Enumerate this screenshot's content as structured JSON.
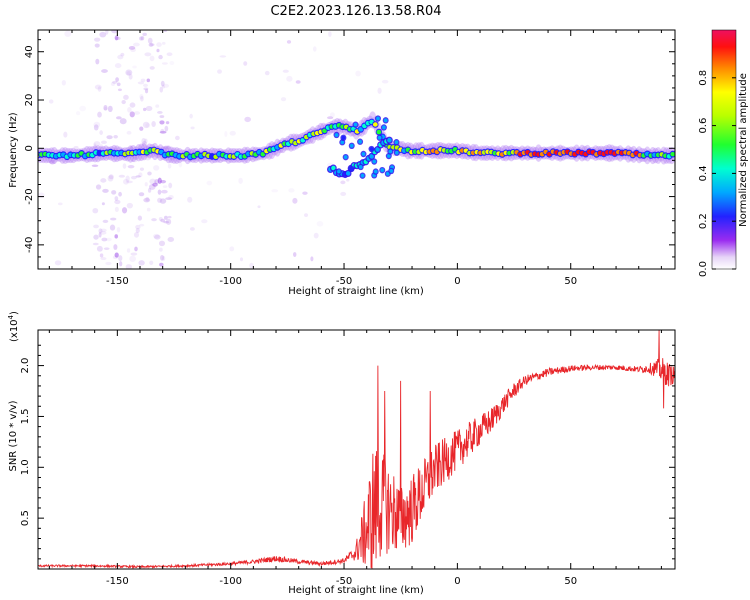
{
  "title": "C2E2.2023.126.13.58.R04",
  "colors": {
    "signal_line": "#e8262a",
    "axis": "#000000",
    "frame": "#000000"
  },
  "chart_data": [
    {
      "type": "heatmap",
      "name": "spectrogram",
      "xlabel": "Height of straight line (km)",
      "ylabel": "Frequency (Hz)",
      "xlim": [
        -185,
        96
      ],
      "ylim": [
        -50,
        49
      ],
      "xticks": [
        -150,
        -100,
        -50,
        0,
        50
      ],
      "yticks": [
        -40,
        -20,
        0,
        20,
        40
      ],
      "ridge": {
        "x": [
          -185,
          -170,
          -155,
          -145,
          -135,
          -125,
          -110,
          -95,
          -85,
          -80,
          -75,
          -70,
          -65,
          -60,
          -57,
          -55,
          -52,
          -50,
          -47,
          -44,
          -40,
          -37,
          -34,
          -31,
          -28,
          -25,
          -22,
          -18,
          -10,
          0,
          10,
          30,
          50,
          70,
          85,
          96
        ],
        "y": [
          -3,
          -3,
          -2,
          -2.5,
          -1,
          -3,
          -3,
          -3,
          -2,
          0,
          2,
          3,
          5,
          7,
          8,
          9,
          9,
          9,
          8,
          7,
          10,
          12,
          6,
          1,
          0,
          0,
          -1,
          -1,
          -1,
          -1,
          -2,
          -2,
          -2,
          -2,
          -3,
          -3
        ]
      },
      "lower_branch": {
        "x": [
          -56,
          -53,
          -50,
          -47,
          -44,
          -41,
          -38,
          -35,
          -32,
          -29
        ],
        "y": [
          -8,
          -10,
          -12,
          -9,
          -7,
          -5,
          -3,
          0,
          2,
          4
        ]
      },
      "noise_band": {
        "x_from": -160,
        "x_to": -125
      },
      "colorbar": {
        "label": "Normalized spectral amplitude",
        "range": [
          0.0,
          1.0
        ],
        "ticks": [
          0.0,
          0.2,
          0.4,
          0.6,
          0.8
        ],
        "tick_labels": [
          "0.0",
          "0.2",
          "0.4",
          "0.6",
          "0.8"
        ]
      }
    },
    {
      "type": "line",
      "name": "snr",
      "xlabel": "Height of straight line (km)",
      "ylabel": "SNR (10 * v/v)",
      "yscale_label": "(x10",
      "yscale_exp": "4",
      "yscale_close": ")",
      "xlim": [
        -185,
        96
      ],
      "ylim": [
        0,
        2.35
      ],
      "xticks": [
        -150,
        -100,
        -50,
        0,
        50
      ],
      "yticks": [
        0.5,
        1.0,
        1.5,
        2.0
      ],
      "ytick_labels": [
        "0.5",
        "1.0",
        "1.5",
        "2.0"
      ],
      "envelope": {
        "x": [
          -185,
          -160,
          -140,
          -120,
          -100,
          -90,
          -80,
          -70,
          -60,
          -50,
          -45,
          -40,
          -37,
          -35,
          -33,
          -30,
          -27,
          -25,
          -20,
          -15,
          -10,
          -5,
          0,
          5,
          10,
          15,
          20,
          25,
          30,
          40,
          50,
          60,
          70,
          80,
          85,
          90,
          93,
          96
        ],
        "base": [
          0.03,
          0.03,
          0.02,
          0.03,
          0.05,
          0.07,
          0.1,
          0.07,
          0.05,
          0.08,
          0.15,
          0.35,
          0.5,
          0.55,
          0.6,
          0.55,
          0.5,
          0.45,
          0.55,
          0.75,
          0.95,
          1.05,
          1.15,
          1.25,
          1.35,
          1.45,
          1.6,
          1.75,
          1.85,
          1.93,
          1.97,
          1.98,
          1.98,
          1.96,
          1.97,
          1.95,
          1.9,
          1.9
        ],
        "amp": [
          0.02,
          0.02,
          0.02,
          0.02,
          0.03,
          0.04,
          0.06,
          0.04,
          0.04,
          0.05,
          0.15,
          0.8,
          1.4,
          1.2,
          1.0,
          0.9,
          0.8,
          0.7,
          0.7,
          0.6,
          0.5,
          0.45,
          0.4,
          0.35,
          0.3,
          0.25,
          0.2,
          0.15,
          0.1,
          0.08,
          0.06,
          0.05,
          0.05,
          0.06,
          0.1,
          0.25,
          0.25,
          0.15
        ]
      },
      "peaks": [
        {
          "x": -35,
          "y": 2.0
        },
        {
          "x": -32,
          "y": 1.75
        },
        {
          "x": -25,
          "y": 1.85
        },
        {
          "x": -12,
          "y": 1.75
        },
        {
          "x": 89,
          "y": 2.35
        },
        {
          "x": 91,
          "y": 1.58
        }
      ]
    }
  ]
}
